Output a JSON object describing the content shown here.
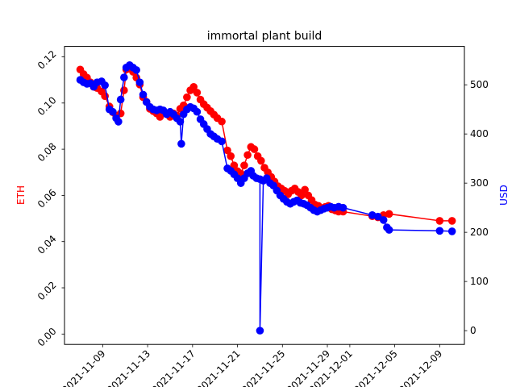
{
  "chart_data": {
    "type": "line",
    "title": "immortal plant build",
    "xlabel": "",
    "x_tick_labels": [
      "2021-11-09",
      "2021-11-13",
      "2021-11-17",
      "2021-11-21",
      "2021-11-25",
      "2021-11-29",
      "2021-12-01",
      "2021-12-05",
      "2021-12-09"
    ],
    "x_tick_days": [
      9,
      13,
      17,
      21,
      25,
      29,
      31,
      35,
      39
    ],
    "x_range_days": [
      5.6,
      41.2
    ],
    "y_left": {
      "label": "ETH",
      "color": "#ff0000",
      "range": [
        -0.0045,
        0.1245
      ],
      "ticks": [
        0.0,
        0.02,
        0.04,
        0.06,
        0.08,
        0.1,
        0.12
      ],
      "tick_labels": [
        "0.00",
        "0.02",
        "0.04",
        "0.06",
        "0.08",
        "0.10",
        "0.12"
      ]
    },
    "y_right": {
      "label": "USD",
      "color": "#0000ff",
      "range": [
        -28,
        578
      ],
      "ticks": [
        0,
        100,
        200,
        300,
        400,
        500
      ],
      "tick_labels": [
        "0",
        "100",
        "200",
        "300",
        "400",
        "500"
      ]
    },
    "series": [
      {
        "axis": "left",
        "color": "#ff0000",
        "points": [
          [
            7.0,
            0.1145
          ],
          [
            7.3,
            0.1125
          ],
          [
            7.6,
            0.111
          ],
          [
            7.9,
            0.109
          ],
          [
            8.2,
            0.107
          ],
          [
            8.5,
            0.1065
          ],
          [
            8.9,
            0.105
          ],
          [
            9.2,
            0.103
          ],
          [
            9.6,
            0.0985
          ],
          [
            9.9,
            0.096
          ],
          [
            10.2,
            0.0945
          ],
          [
            10.6,
            0.0955
          ],
          [
            10.9,
            0.1055
          ],
          [
            11.1,
            0.1145
          ],
          [
            11.4,
            0.115
          ],
          [
            11.7,
            0.1135
          ],
          [
            12.0,
            0.111
          ],
          [
            12.3,
            0.108
          ],
          [
            12.6,
            0.1025
          ],
          [
            12.9,
            0.1005
          ],
          [
            13.2,
            0.0975
          ],
          [
            13.5,
            0.0965
          ],
          [
            13.8,
            0.0955
          ],
          [
            14.1,
            0.094
          ],
          [
            14.4,
            0.0965
          ],
          [
            14.7,
            0.0955
          ],
          [
            15.0,
            0.094
          ],
          [
            15.3,
            0.0955
          ],
          [
            15.6,
            0.0945
          ],
          [
            15.9,
            0.0975
          ],
          [
            16.2,
            0.099
          ],
          [
            16.5,
            0.1025
          ],
          [
            16.8,
            0.1055
          ],
          [
            17.1,
            0.107
          ],
          [
            17.4,
            0.1045
          ],
          [
            17.7,
            0.1015
          ],
          [
            18.0,
            0.0995
          ],
          [
            18.3,
            0.098
          ],
          [
            18.6,
            0.0965
          ],
          [
            18.9,
            0.095
          ],
          [
            19.2,
            0.0935
          ],
          [
            19.6,
            0.092
          ],
          [
            20.1,
            0.0795
          ],
          [
            20.4,
            0.077
          ],
          [
            20.7,
            0.073
          ],
          [
            21.0,
            0.0705
          ],
          [
            21.3,
            0.0695
          ],
          [
            21.6,
            0.073
          ],
          [
            21.9,
            0.0775
          ],
          [
            22.2,
            0.081
          ],
          [
            22.5,
            0.08
          ],
          [
            22.8,
            0.077
          ],
          [
            23.1,
            0.075
          ],
          [
            23.4,
            0.072
          ],
          [
            23.7,
            0.07
          ],
          [
            24.0,
            0.068
          ],
          [
            24.3,
            0.066
          ],
          [
            24.6,
            0.064
          ],
          [
            24.9,
            0.063
          ],
          [
            25.2,
            0.062
          ],
          [
            25.5,
            0.0605
          ],
          [
            25.8,
            0.062
          ],
          [
            26.1,
            0.063
          ],
          [
            26.4,
            0.0615
          ],
          [
            26.7,
            0.06
          ],
          [
            27.0,
            0.0625
          ],
          [
            27.3,
            0.06
          ],
          [
            27.6,
            0.058
          ],
          [
            27.9,
            0.056
          ],
          [
            28.2,
            0.0555
          ],
          [
            28.5,
            0.0545
          ],
          [
            28.8,
            0.055
          ],
          [
            29.1,
            0.0555
          ],
          [
            29.4,
            0.054
          ],
          [
            29.7,
            0.0535
          ],
          [
            30.0,
            0.053
          ],
          [
            30.4,
            0.053
          ],
          [
            33.0,
            0.051
          ],
          [
            33.5,
            0.0505
          ],
          [
            34.0,
            0.0515
          ],
          [
            34.5,
            0.052
          ],
          [
            39.0,
            0.049
          ],
          [
            40.1,
            0.049
          ]
        ]
      },
      {
        "axis": "right",
        "color": "#0000ff",
        "points": [
          [
            7.0,
            510
          ],
          [
            7.3,
            505
          ],
          [
            7.6,
            502
          ],
          [
            7.9,
            503
          ],
          [
            8.2,
            496
          ],
          [
            8.5,
            505
          ],
          [
            8.9,
            507
          ],
          [
            9.2,
            499
          ],
          [
            9.6,
            450
          ],
          [
            9.9,
            445
          ],
          [
            10.2,
            432
          ],
          [
            10.4,
            425
          ],
          [
            10.6,
            470
          ],
          [
            10.9,
            515
          ],
          [
            11.1,
            535
          ],
          [
            11.4,
            540
          ],
          [
            11.7,
            535
          ],
          [
            12.0,
            530
          ],
          [
            12.3,
            505
          ],
          [
            12.6,
            480
          ],
          [
            12.9,
            465
          ],
          [
            13.2,
            455
          ],
          [
            13.5,
            450
          ],
          [
            13.8,
            448
          ],
          [
            14.1,
            450
          ],
          [
            14.4,
            448
          ],
          [
            14.7,
            440
          ],
          [
            15.0,
            445
          ],
          [
            15.3,
            440
          ],
          [
            15.6,
            432
          ],
          [
            15.9,
            425
          ],
          [
            16.0,
            380
          ],
          [
            16.2,
            440
          ],
          [
            16.5,
            450
          ],
          [
            16.8,
            455
          ],
          [
            17.1,
            452
          ],
          [
            17.4,
            445
          ],
          [
            17.7,
            430
          ],
          [
            18.0,
            420
          ],
          [
            18.3,
            410
          ],
          [
            18.6,
            400
          ],
          [
            18.9,
            395
          ],
          [
            19.2,
            390
          ],
          [
            19.6,
            385
          ],
          [
            20.1,
            330
          ],
          [
            20.4,
            325
          ],
          [
            20.7,
            318
          ],
          [
            21.0,
            310
          ],
          [
            21.3,
            300
          ],
          [
            21.6,
            310
          ],
          [
            21.9,
            320
          ],
          [
            22.2,
            325
          ],
          [
            22.4,
            315
          ],
          [
            22.7,
            310
          ],
          [
            23.0,
            308
          ],
          [
            23.0,
            0
          ],
          [
            23.3,
            305
          ],
          [
            23.6,
            310
          ],
          [
            23.9,
            300
          ],
          [
            24.2,
            295
          ],
          [
            24.5,
            285
          ],
          [
            24.8,
            275
          ],
          [
            25.1,
            268
          ],
          [
            25.4,
            262
          ],
          [
            25.7,
            258
          ],
          [
            26.0,
            262
          ],
          [
            26.3,
            265
          ],
          [
            26.6,
            260
          ],
          [
            26.9,
            258
          ],
          [
            27.2,
            255
          ],
          [
            27.5,
            250
          ],
          [
            27.8,
            245
          ],
          [
            28.1,
            242
          ],
          [
            28.4,
            245
          ],
          [
            28.7,
            248
          ],
          [
            29.0,
            250
          ],
          [
            29.3,
            252
          ],
          [
            29.6,
            250
          ],
          [
            30.0,
            252
          ],
          [
            30.4,
            250
          ],
          [
            33.0,
            235
          ],
          [
            33.5,
            232
          ],
          [
            34.0,
            225
          ],
          [
            34.3,
            210
          ],
          [
            34.5,
            205
          ],
          [
            39.0,
            203
          ],
          [
            40.1,
            202
          ]
        ]
      }
    ]
  }
}
